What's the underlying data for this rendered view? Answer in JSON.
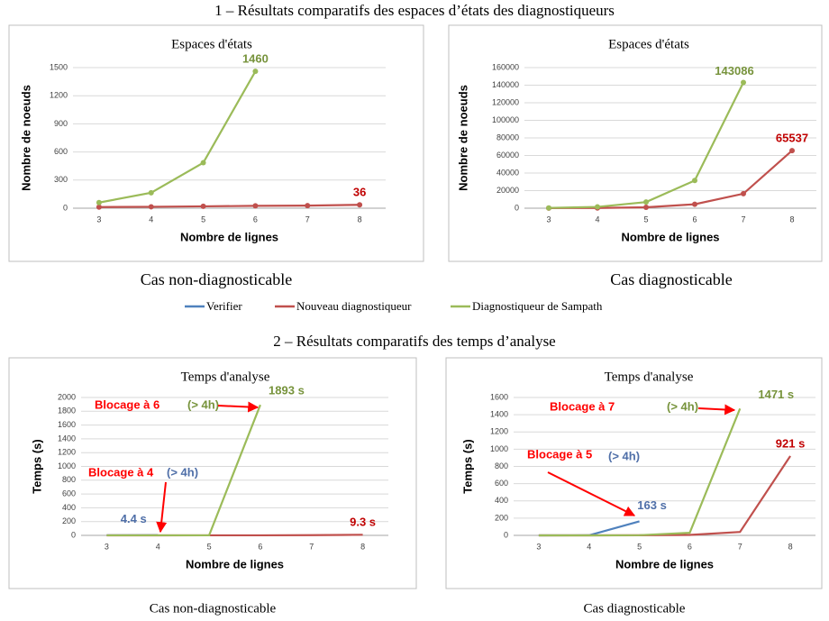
{
  "figure": {
    "section_titles": [
      "1 – Résultats comparatifs des espaces d’états des diagnostiqueurs",
      "2 – Résultats comparatifs des temps d’analyse"
    ],
    "captions": [
      "Cas non-diagnosticable",
      "Cas diagnosticable",
      "Cas non-diagnosticable",
      "Cas diagnosticable"
    ]
  },
  "chart_data": [
    {
      "type": "line",
      "title": "Espaces d'états",
      "xlabel": "Nombre de lignes",
      "ylabel": "Nombre de noeuds",
      "markers": true,
      "grid": true,
      "categories": [
        "3",
        "4",
        "5",
        "6",
        "7",
        "8"
      ],
      "ylim": [
        0,
        1500
      ],
      "yticks": [
        0,
        300,
        600,
        900,
        1200,
        1500
      ],
      "series": [
        {
          "name": "Nouveau diagnostiqueur",
          "color": "#c0504d",
          "label_color": "#c00000",
          "values": [
            12,
            15,
            20,
            25,
            28,
            36
          ],
          "value_labels": [
            null,
            null,
            null,
            null,
            null,
            "36"
          ]
        },
        {
          "name": "Diagnostiqueur de Sampath",
          "color": "#9bbb59",
          "label_color": "#77933c",
          "values": [
            60,
            165,
            485,
            1460,
            null,
            null
          ],
          "value_labels": [
            null,
            null,
            null,
            "1460",
            null,
            null
          ]
        }
      ]
    },
    {
      "type": "line",
      "title": "Espaces d'états",
      "xlabel": "Nombre de lignes",
      "ylabel": "Nombre de noeuds",
      "markers": true,
      "grid": true,
      "categories": [
        "3",
        "4",
        "5",
        "6",
        "7",
        "8"
      ],
      "ylim": [
        0,
        160000
      ],
      "yticks": [
        0,
        20000,
        40000,
        60000,
        80000,
        100000,
        120000,
        140000,
        160000
      ],
      "series": [
        {
          "name": "Nouveau diagnostiqueur",
          "color": "#c0504d",
          "label_color": "#c00000",
          "values": [
            100,
            250,
            1000,
            4500,
            16500,
            65537
          ],
          "value_labels": [
            null,
            null,
            null,
            null,
            null,
            "65537"
          ]
        },
        {
          "name": "Diagnostiqueur de Sampath",
          "color": "#9bbb59",
          "label_color": "#77933c",
          "values": [
            300,
            1500,
            7000,
            31500,
            143086,
            null
          ],
          "value_labels": [
            null,
            null,
            null,
            null,
            "143086",
            null
          ]
        }
      ]
    },
    {
      "type": "line",
      "title": "Temps d'analyse",
      "xlabel": "Nombre de lignes",
      "ylabel": "Temps (s)",
      "markers": false,
      "grid": true,
      "categories": [
        "3",
        "4",
        "5",
        "6",
        "7",
        "8"
      ],
      "ylim": [
        0,
        2000
      ],
      "yticks": [
        0,
        200,
        400,
        600,
        800,
        1000,
        1200,
        1400,
        1600,
        1800,
        2000
      ],
      "series": [
        {
          "name": "Verifier",
          "color": "#4f81bd",
          "label_color": "#4f6fa8",
          "values": [
            2,
            4.4,
            null,
            null,
            null,
            null
          ],
          "value_labels": [
            null,
            "4.4 s",
            null,
            null,
            null,
            null
          ]
        },
        {
          "name": "Nouveau diagnostiqueur",
          "color": "#c0504d",
          "label_color": "#c00000",
          "values": [
            0.1,
            0.2,
            0.5,
            1,
            3,
            9.3
          ],
          "value_labels": [
            null,
            null,
            null,
            null,
            null,
            "9.3 s"
          ]
        },
        {
          "name": "Diagnostiqueur de Sampath",
          "color": "#9bbb59",
          "label_color": "#77933c",
          "values": [
            0.5,
            1,
            2,
            1893,
            null,
            null
          ],
          "value_labels": [
            null,
            null,
            null,
            "1893 s",
            null,
            null
          ]
        }
      ],
      "annotations": [
        {
          "text": "Blocage à 6",
          "color": "#ff0000"
        },
        {
          "text": "(> 4h)",
          "color": "#77933c"
        },
        {
          "text": "Blocage à 4",
          "color": "#ff0000"
        },
        {
          "text": "(> 4h)",
          "color": "#4f6fa8"
        }
      ]
    },
    {
      "type": "line",
      "title": "Temps d'analyse",
      "xlabel": "Nombre de lignes",
      "ylabel": "Temps (s)",
      "markers": false,
      "grid": true,
      "categories": [
        "3",
        "4",
        "5",
        "6",
        "7",
        "8"
      ],
      "ylim": [
        0,
        1600
      ],
      "yticks": [
        0,
        200,
        400,
        600,
        800,
        1000,
        1200,
        1400,
        1600
      ],
      "series": [
        {
          "name": "Verifier",
          "color": "#4f81bd",
          "label_color": "#4f6fa8",
          "values": [
            0,
            1,
            163,
            null,
            null,
            null
          ],
          "value_labels": [
            null,
            null,
            "163 s",
            null,
            null,
            null
          ]
        },
        {
          "name": "Nouveau diagnostiqueur",
          "color": "#c0504d",
          "label_color": "#c00000",
          "values": [
            0,
            0,
            1,
            5,
            40,
            921
          ],
          "value_labels": [
            null,
            null,
            null,
            null,
            null,
            "921 s"
          ]
        },
        {
          "name": "Diagnostiqueur de Sampath",
          "color": "#9bbb59",
          "label_color": "#77933c",
          "values": [
            0,
            0,
            2,
            30,
            1471,
            null
          ],
          "value_labels": [
            null,
            null,
            null,
            null,
            "1471 s",
            null
          ]
        }
      ],
      "annotations": [
        {
          "text": "Blocage à 7",
          "color": "#ff0000"
        },
        {
          "text": "(> 4h)",
          "color": "#77933c"
        },
        {
          "text": "Blocage à 5",
          "color": "#ff0000"
        },
        {
          "text": "(> 4h)",
          "color": "#4f6fa8"
        }
      ]
    }
  ]
}
